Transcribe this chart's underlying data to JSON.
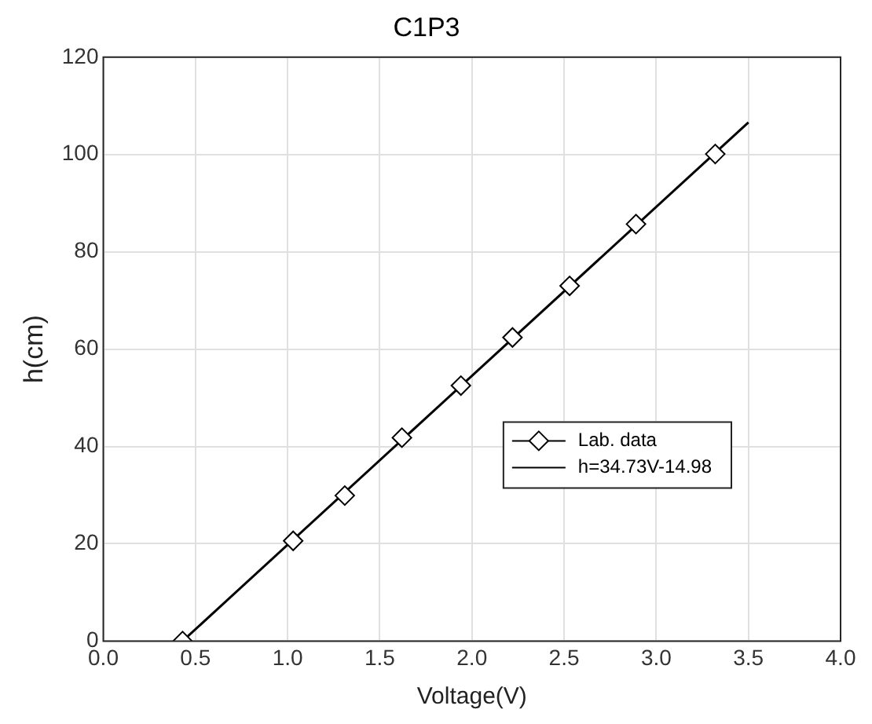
{
  "chart_data": {
    "type": "scatter",
    "title": "C1P3",
    "xlabel": "Voltage(V)",
    "ylabel": "h(cm)",
    "xlim": [
      0,
      4
    ],
    "xticks": [
      {
        "value": 0,
        "label": "0.0"
      },
      {
        "value": 0.5,
        "label": "0.5"
      },
      {
        "value": 1,
        "label": "1.0"
      },
      {
        "value": 1.5,
        "label": "1.5"
      },
      {
        "value": 2,
        "label": "2.0"
      },
      {
        "value": 2.5,
        "label": "2.5"
      },
      {
        "value": 3,
        "label": "3.0"
      },
      {
        "value": 3.5,
        "label": "3.5"
      },
      {
        "value": 4,
        "label": "4.0"
      }
    ],
    "ylim": [
      0,
      120
    ],
    "yticks": [
      0,
      20,
      40,
      60,
      80,
      100,
      120
    ],
    "grid": true,
    "legend": "bottom right",
    "marker": "diamond",
    "series": [
      {
        "name": "Lab. data",
        "type": "scatter",
        "color": "#000000",
        "x": [
          0.43,
          1.03,
          1.31,
          1.62,
          1.94,
          2.22,
          2.53,
          2.89,
          3.32
        ],
        "values": [
          0,
          20.6,
          29.9,
          41.8,
          52.5,
          62.4,
          73,
          85.7,
          100.1
        ]
      },
      {
        "name": "h=34.73V-14.98",
        "type": "line",
        "color": "#000000",
        "marker": "none",
        "x": [
          0.43,
          3.5
        ],
        "values": [
          0,
          106.6
        ]
      }
    ]
  }
}
